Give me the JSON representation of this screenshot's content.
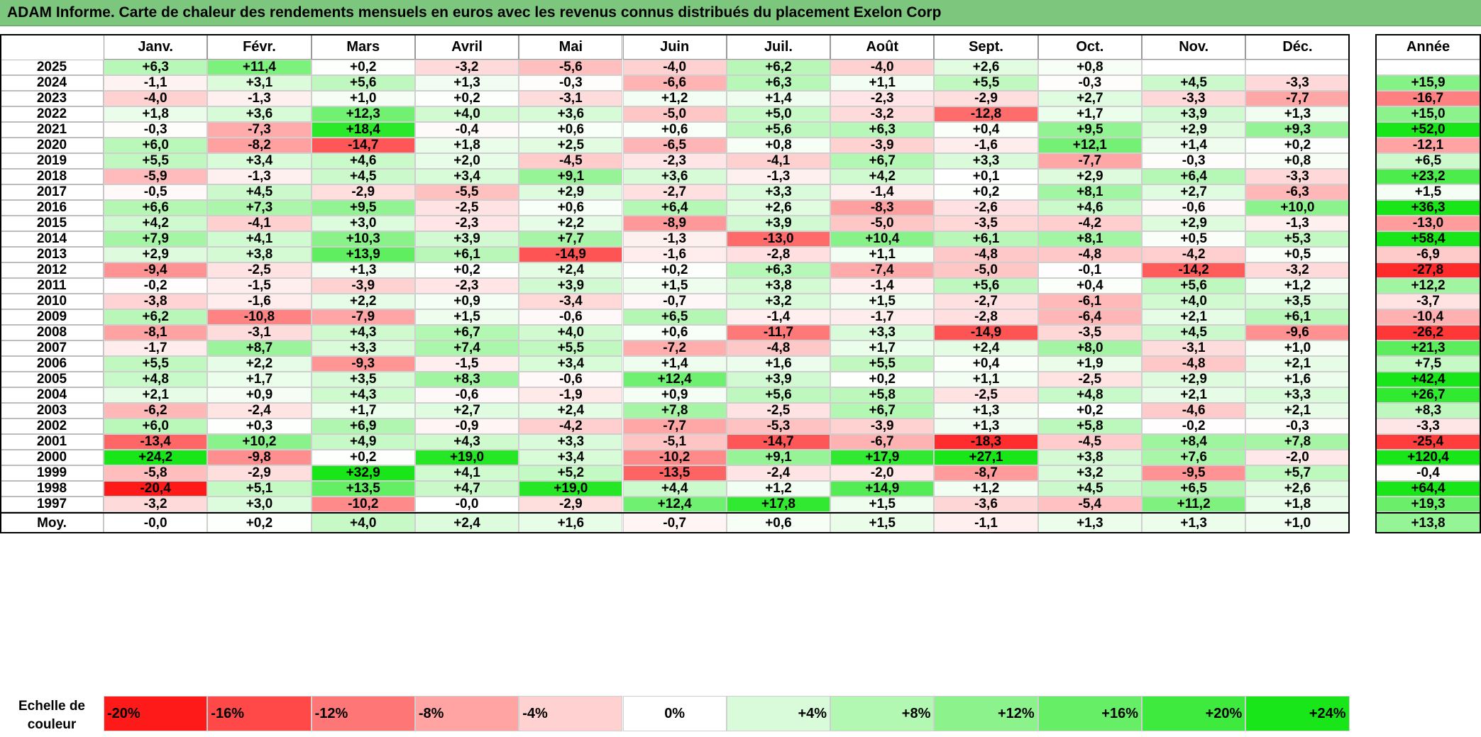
{
  "title": "ADAM Informe. Carte de chaleur des rendements mensuels en euros avec les revenus connus distribués du placement Exelon Corp",
  "colors": {
    "title_bg": "#7dc67d",
    "negative_max": "#ff1a1a",
    "neutral": "#ffffff",
    "positive_max": "#19e619"
  },
  "chart_data": {
    "type": "heatmap",
    "title": "ADAM Informe. Carte de chaleur des rendements mensuels en euros avec les revenus connus distribués du placement Exelon Corp",
    "columns": [
      "Janv.",
      "Févr.",
      "Mars",
      "Avril",
      "Mai",
      "Juin",
      "Juil.",
      "Août",
      "Sept.",
      "Oct.",
      "Nov.",
      "Déc."
    ],
    "annual_header": "Année",
    "rows": [
      {
        "year": "2025",
        "values": [
          "+6,3",
          "+11,4",
          "+0,2",
          "-3,2",
          "-5,6",
          "-4,0",
          "+6,2",
          "-4,0",
          "+2,6",
          "+0,8",
          "",
          ""
        ],
        "annual": ""
      },
      {
        "year": "2024",
        "values": [
          "-1,1",
          "+3,1",
          "+5,6",
          "+1,3",
          "-0,3",
          "-6,6",
          "+6,3",
          "+1,1",
          "+5,5",
          "-0,3",
          "+4,5",
          "-3,3"
        ],
        "annual": "+15,9"
      },
      {
        "year": "2023",
        "values": [
          "-4,0",
          "-1,3",
          "+1,0",
          "+0,2",
          "-3,1",
          "+1,2",
          "+1,4",
          "-2,3",
          "-2,9",
          "+2,7",
          "-3,3",
          "-7,7"
        ],
        "annual": "-16,7"
      },
      {
        "year": "2022",
        "values": [
          "+1,8",
          "+3,6",
          "+12,3",
          "+4,0",
          "+3,6",
          "-5,0",
          "+5,0",
          "-3,2",
          "-12,8",
          "+1,7",
          "+3,9",
          "+1,3"
        ],
        "annual": "+15,0"
      },
      {
        "year": "2021",
        "values": [
          "-0,3",
          "-7,3",
          "+18,4",
          "-0,4",
          "+0,6",
          "+0,6",
          "+5,6",
          "+6,3",
          "+0,4",
          "+9,5",
          "+2,9",
          "+9,3"
        ],
        "annual": "+52,0"
      },
      {
        "year": "2020",
        "values": [
          "+6,0",
          "-8,2",
          "-14,7",
          "+1,8",
          "+2,5",
          "-6,5",
          "+0,8",
          "-3,9",
          "-1,6",
          "+12,1",
          "+1,4",
          "+0,2"
        ],
        "annual": "-12,1"
      },
      {
        "year": "2019",
        "values": [
          "+5,5",
          "+3,4",
          "+4,6",
          "+2,0",
          "-4,5",
          "-2,3",
          "-4,1",
          "+6,7",
          "+3,3",
          "-7,7",
          "-0,3",
          "+0,8"
        ],
        "annual": "+6,5"
      },
      {
        "year": "2018",
        "values": [
          "-5,9",
          "-1,3",
          "+4,5",
          "+3,4",
          "+9,1",
          "+3,6",
          "-1,3",
          "+4,2",
          "+0,1",
          "+2,9",
          "+6,4",
          "-3,3"
        ],
        "annual": "+23,2"
      },
      {
        "year": "2017",
        "values": [
          "-0,5",
          "+4,5",
          "-2,9",
          "-5,5",
          "+2,9",
          "-2,7",
          "+3,3",
          "-1,4",
          "+0,2",
          "+8,1",
          "+2,7",
          "-6,3"
        ],
        "annual": "+1,5"
      },
      {
        "year": "2016",
        "values": [
          "+6,6",
          "+7,3",
          "+9,5",
          "-2,5",
          "+0,6",
          "+6,4",
          "+2,6",
          "-8,3",
          "-2,6",
          "+4,6",
          "-0,6",
          "+10,0"
        ],
        "annual": "+36,3"
      },
      {
        "year": "2015",
        "values": [
          "+4,2",
          "-4,1",
          "+3,0",
          "-2,3",
          "+2,2",
          "-8,9",
          "+3,9",
          "-5,0",
          "-3,5",
          "-4,2",
          "+2,9",
          "-1,3"
        ],
        "annual": "-13,0"
      },
      {
        "year": "2014",
        "values": [
          "+7,9",
          "+4,1",
          "+10,3",
          "+3,9",
          "+7,7",
          "-1,3",
          "-13,0",
          "+10,4",
          "+6,1",
          "+8,1",
          "+0,5",
          "+5,3"
        ],
        "annual": "+58,4"
      },
      {
        "year": "2013",
        "values": [
          "+2,9",
          "+3,8",
          "+13,9",
          "+6,1",
          "-14,9",
          "-1,6",
          "-2,8",
          "+1,1",
          "-4,8",
          "-4,8",
          "-4,2",
          "+0,5"
        ],
        "annual": "-6,9"
      },
      {
        "year": "2012",
        "values": [
          "-9,4",
          "-2,5",
          "+1,3",
          "+0,2",
          "+2,4",
          "+0,2",
          "+6,3",
          "-7,4",
          "-5,0",
          "-0,1",
          "-14,2",
          "-3,2"
        ],
        "annual": "-27,8"
      },
      {
        "year": "2011",
        "values": [
          "-0,2",
          "-1,5",
          "-3,9",
          "-2,3",
          "+3,9",
          "+1,5",
          "+3,8",
          "-1,4",
          "+5,6",
          "+0,4",
          "+5,6",
          "+1,2"
        ],
        "annual": "+12,2"
      },
      {
        "year": "2010",
        "values": [
          "-3,8",
          "-1,6",
          "+2,2",
          "+0,9",
          "-3,4",
          "-0,7",
          "+3,2",
          "+1,5",
          "-2,7",
          "-6,1",
          "+4,0",
          "+3,5"
        ],
        "annual": "-3,7"
      },
      {
        "year": "2009",
        "values": [
          "+6,2",
          "-10,8",
          "-7,9",
          "+1,5",
          "-0,6",
          "+6,5",
          "-1,4",
          "-1,7",
          "-2,8",
          "-6,4",
          "+2,1",
          "+6,1"
        ],
        "annual": "-10,4"
      },
      {
        "year": "2008",
        "values": [
          "-8,1",
          "-3,1",
          "+4,3",
          "+6,7",
          "+4,0",
          "+0,6",
          "-11,7",
          "+3,3",
          "-14,9",
          "-3,5",
          "+4,5",
          "-9,6"
        ],
        "annual": "-26,2"
      },
      {
        "year": "2007",
        "values": [
          "-1,7",
          "+8,7",
          "+3,3",
          "+7,4",
          "+5,5",
          "-7,2",
          "-4,8",
          "+1,7",
          "+2,4",
          "+8,0",
          "-3,1",
          "+1,0"
        ],
        "annual": "+21,3"
      },
      {
        "year": "2006",
        "values": [
          "+5,5",
          "+2,2",
          "-9,3",
          "-1,5",
          "+3,4",
          "+1,4",
          "+1,6",
          "+5,5",
          "+0,4",
          "+1,9",
          "-4,8",
          "+2,1"
        ],
        "annual": "+7,5"
      },
      {
        "year": "2005",
        "values": [
          "+4,8",
          "+1,7",
          "+3,5",
          "+8,3",
          "-0,6",
          "+12,4",
          "+3,9",
          "+0,2",
          "+1,1",
          "-2,5",
          "+2,9",
          "+1,6"
        ],
        "annual": "+42,4"
      },
      {
        "year": "2004",
        "values": [
          "+2,1",
          "+0,9",
          "+4,3",
          "-0,6",
          "-1,9",
          "+0,9",
          "+5,6",
          "+5,8",
          "-2,5",
          "+4,8",
          "+2,1",
          "+3,3"
        ],
        "annual": "+26,7"
      },
      {
        "year": "2003",
        "values": [
          "-6,2",
          "-2,4",
          "+1,7",
          "+2,7",
          "+2,4",
          "+7,8",
          "-2,5",
          "+6,7",
          "+1,3",
          "+0,2",
          "-4,6",
          "+2,1"
        ],
        "annual": "+8,3"
      },
      {
        "year": "2002",
        "values": [
          "+6,0",
          "+0,3",
          "+6,9",
          "-0,9",
          "-4,2",
          "-7,7",
          "-5,3",
          "-3,9",
          "+1,3",
          "+5,8",
          "-0,2",
          "-0,3"
        ],
        "annual": "-3,3"
      },
      {
        "year": "2001",
        "values": [
          "-13,4",
          "+10,2",
          "+4,9",
          "+4,3",
          "+3,3",
          "-5,1",
          "-14,7",
          "-6,7",
          "-18,3",
          "-4,5",
          "+8,4",
          "+7,8"
        ],
        "annual": "-25,4"
      },
      {
        "year": "2000",
        "values": [
          "+24,2",
          "-9,8",
          "+0,2",
          "+19,0",
          "+3,4",
          "-10,2",
          "+9,1",
          "+17,9",
          "+27,1",
          "+3,8",
          "+7,6",
          "-2,0"
        ],
        "annual": "+120,4"
      },
      {
        "year": "1999",
        "values": [
          "-5,8",
          "-2,9",
          "+32,9",
          "+4,1",
          "+5,2",
          "-13,5",
          "-2,4",
          "-2,0",
          "-8,7",
          "+3,2",
          "-9,5",
          "+5,7"
        ],
        "annual": "-0,4"
      },
      {
        "year": "1998",
        "values": [
          "-20,4",
          "+5,1",
          "+13,5",
          "+4,7",
          "+19,0",
          "+4,4",
          "+1,2",
          "+14,9",
          "+1,2",
          "+4,5",
          "+6,5",
          "+2,6"
        ],
        "annual": "+64,4"
      },
      {
        "year": "1997",
        "values": [
          "-3,2",
          "+3,0",
          "-10,2",
          "-0,0",
          "-2,9",
          "+12,4",
          "+17,8",
          "+1,5",
          "-3,6",
          "-5,4",
          "+11,2",
          "+1,8"
        ],
        "annual": "+19,3"
      }
    ],
    "average_row": {
      "label": "Moy.",
      "values": [
        "-0,0",
        "+0,2",
        "+4,0",
        "+2,4",
        "+1,6",
        "-0,7",
        "+0,6",
        "+1,5",
        "-1,1",
        "+1,3",
        "+1,3",
        "+1,0"
      ],
      "annual": "+13,8"
    },
    "color_scale": {
      "label": "Echelle de couleur",
      "steps": [
        "-20%",
        "-16%",
        "-12%",
        "-8%",
        "-4%",
        "0%",
        "+4%",
        "+8%",
        "+12%",
        "+16%",
        "+20%",
        "+24%"
      ],
      "min": -20,
      "max": 24
    }
  }
}
